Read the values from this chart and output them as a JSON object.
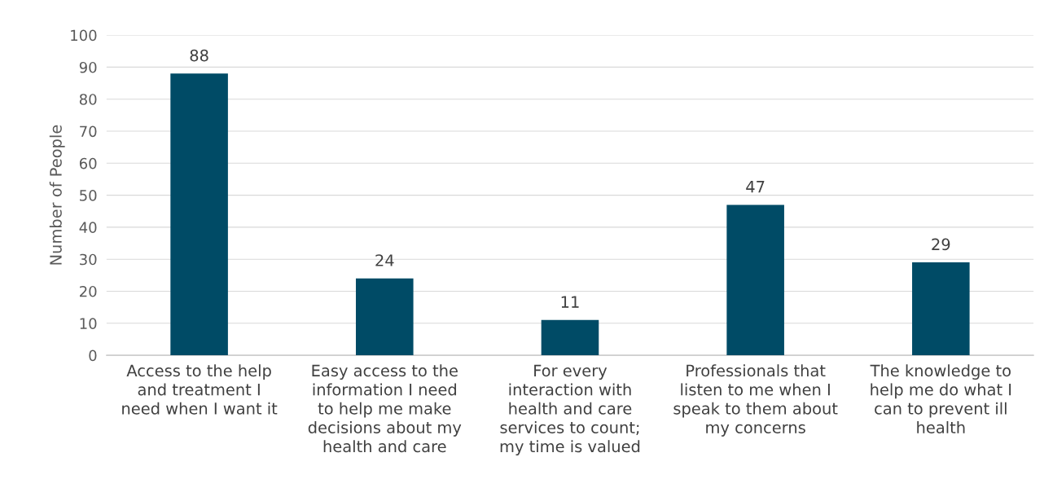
{
  "chart_data": {
    "type": "bar",
    "ylabel": "Number of People",
    "categories": [
      "Access to the help\nand treatment I\nneed when I want it",
      "Easy access to the\ninformation I need\nto help me make\ndecisions about my\nhealth and care",
      "For every\ninteraction with\nhealth and care\nservices to count;\nmy time is valued",
      "Professionals that\nlisten to me when I\nspeak to them about\nmy concerns",
      "The knowledge to\nhelp me do what I\ncan to prevent ill\nhealth"
    ],
    "values": [
      88,
      24,
      11,
      47,
      29
    ],
    "color": "#004b66",
    "ylim": [
      0,
      100
    ],
    "yticks": [
      0,
      10,
      20,
      30,
      40,
      50,
      60,
      70,
      80,
      90,
      100
    ],
    "grid": "y",
    "data_labels": true
  }
}
